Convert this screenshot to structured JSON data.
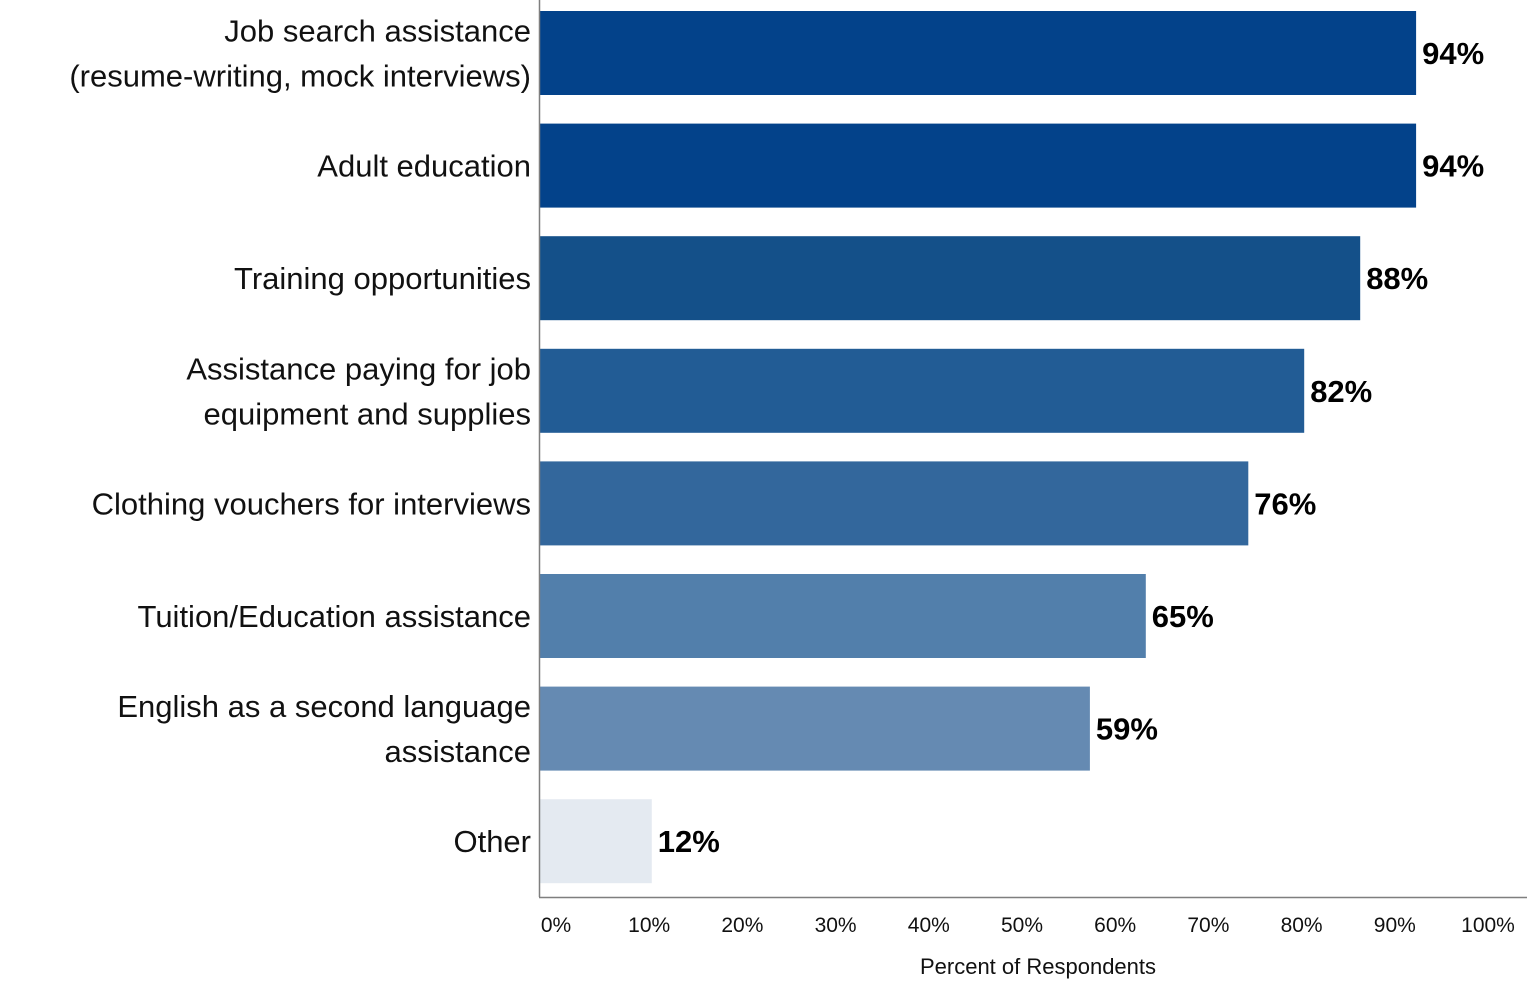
{
  "chart_data": {
    "type": "bar",
    "orientation": "horizontal",
    "categories": [
      [
        "Job search assistance",
        "(resume-writing, mock interviews)"
      ],
      [
        "Adult education"
      ],
      [
        "Training opportunities"
      ],
      [
        "Assistance paying for job",
        "equipment and supplies"
      ],
      [
        "Clothing vouchers for interviews"
      ],
      [
        "Tuition/Education assistance"
      ],
      [
        "English as a second language",
        "assistance"
      ],
      [
        "Other"
      ]
    ],
    "values": [
      94,
      94,
      88,
      82,
      76,
      65,
      59,
      12
    ],
    "value_labels": [
      "94%",
      "94%",
      "88%",
      "82%",
      "76%",
      "65%",
      "59%",
      "12%"
    ],
    "bar_colors": [
      "#03428a",
      "#03428a",
      "#145089",
      "#225c95",
      "#33679c",
      "#527fab",
      "#658ab2",
      "#e4eaf1"
    ],
    "xlabel": "Percent of Respondents",
    "ylabel": "",
    "xlim": [
      0,
      100
    ],
    "x_ticks": [
      "0%",
      "10%",
      "20%",
      "30%",
      "40%",
      "50%",
      "60%",
      "70%",
      "80%",
      "90%",
      "100%"
    ],
    "grid": false,
    "legend": "none"
  }
}
